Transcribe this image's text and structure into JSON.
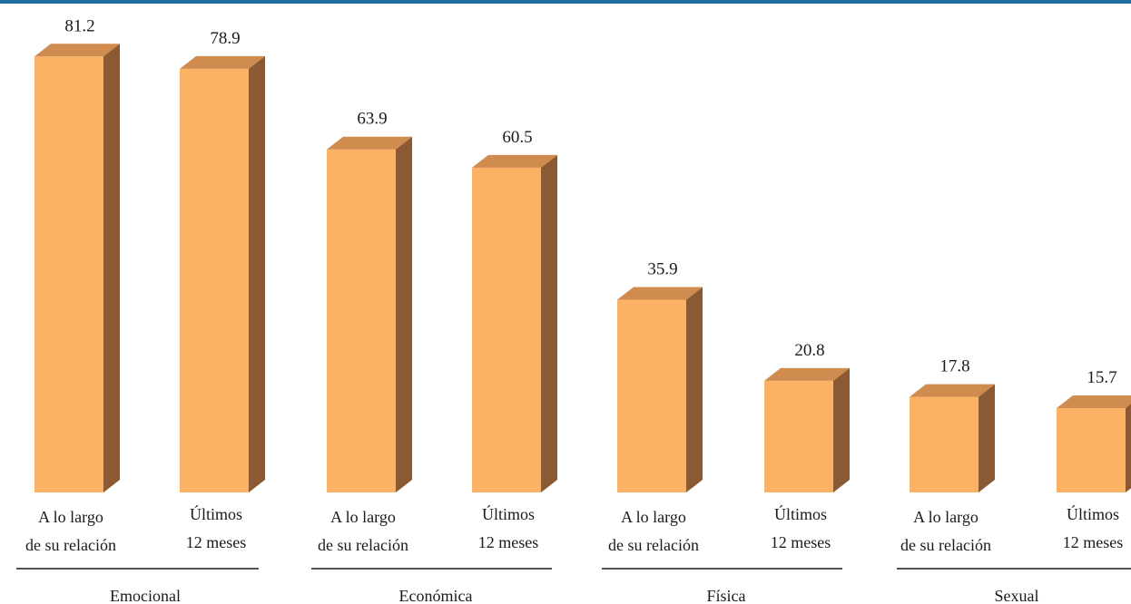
{
  "colors": {
    "bar_front": "#FBB265",
    "bar_top": "#D08B4E",
    "bar_side": "#8B5A32",
    "top_rule": "#1f6fa3"
  },
  "chart_data": {
    "type": "bar",
    "style": "3d",
    "groups": [
      "Emocional",
      "Económica",
      "Física",
      "Sexual"
    ],
    "subcategories": [
      [
        "A lo largo",
        "de su relación"
      ],
      [
        "Últimos",
        "12 meses"
      ]
    ],
    "values": [
      [
        81.2,
        78.9
      ],
      [
        63.9,
        60.5
      ],
      [
        35.9,
        20.8
      ],
      [
        17.8,
        15.7
      ]
    ],
    "value_labels": [
      [
        "81.2",
        "78.9"
      ],
      [
        "63.9",
        "60.5"
      ],
      [
        "35.9",
        "20.8"
      ],
      [
        "17.8",
        "15.7"
      ]
    ],
    "ylim": [
      0,
      90
    ],
    "grid": false,
    "legend": "none"
  }
}
